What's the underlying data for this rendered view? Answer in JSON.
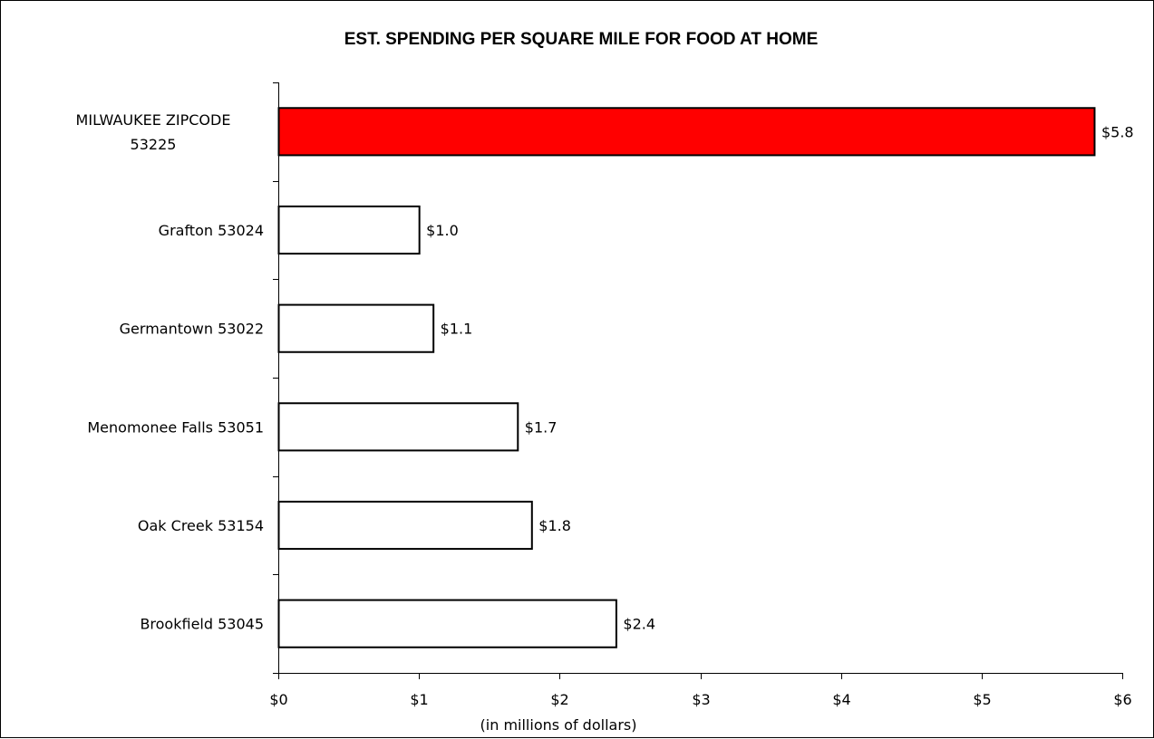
{
  "chart_data": {
    "type": "bar",
    "orientation": "horizontal",
    "title": "EST. SPENDING PER SQUARE MILE FOR FOOD AT HOME",
    "xlabel": "(in millions of dollars)",
    "ylabel": "",
    "xlim": [
      0,
      6
    ],
    "x_ticks": [
      0,
      1,
      2,
      3,
      4,
      5,
      6
    ],
    "x_tick_labels": [
      "$0",
      "$1",
      "$2",
      "$3",
      "$4",
      "$5",
      "$6"
    ],
    "categories": [
      [
        "MILWAUKEE ZIPCODE",
        "53225"
      ],
      [
        "Grafton 53024"
      ],
      [
        "Germantown 53022"
      ],
      [
        "Menomonee Falls 53051"
      ],
      [
        "Oak Creek 53154"
      ],
      [
        "Brookfield 53045"
      ]
    ],
    "values": [
      5.8,
      1.0,
      1.1,
      1.7,
      1.8,
      2.4
    ],
    "data_labels": [
      "$5.8",
      "$1.0",
      "$1.1",
      "$1.7",
      "$1.8",
      "$2.4"
    ],
    "bar_colors": [
      "#ff0000",
      "#ffffff",
      "#ffffff",
      "#ffffff",
      "#ffffff",
      "#ffffff"
    ],
    "bar_edge_color": "#000000",
    "grid": false,
    "legend": "none"
  }
}
